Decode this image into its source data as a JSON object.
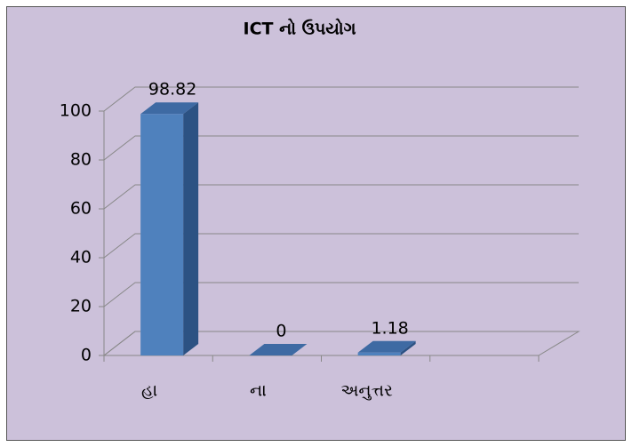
{
  "chart_data": {
    "type": "bar",
    "title": "ICT નો ઉપયોગ",
    "categories": [
      "હા",
      "ના",
      "અનુત્તર",
      null
    ],
    "values": [
      98.82,
      0,
      1.18,
      null
    ],
    "color": "#4f81bd",
    "ylim": [
      0,
      100
    ],
    "yticks": [
      0,
      20,
      40,
      60,
      80,
      100
    ],
    "grid": true
  }
}
